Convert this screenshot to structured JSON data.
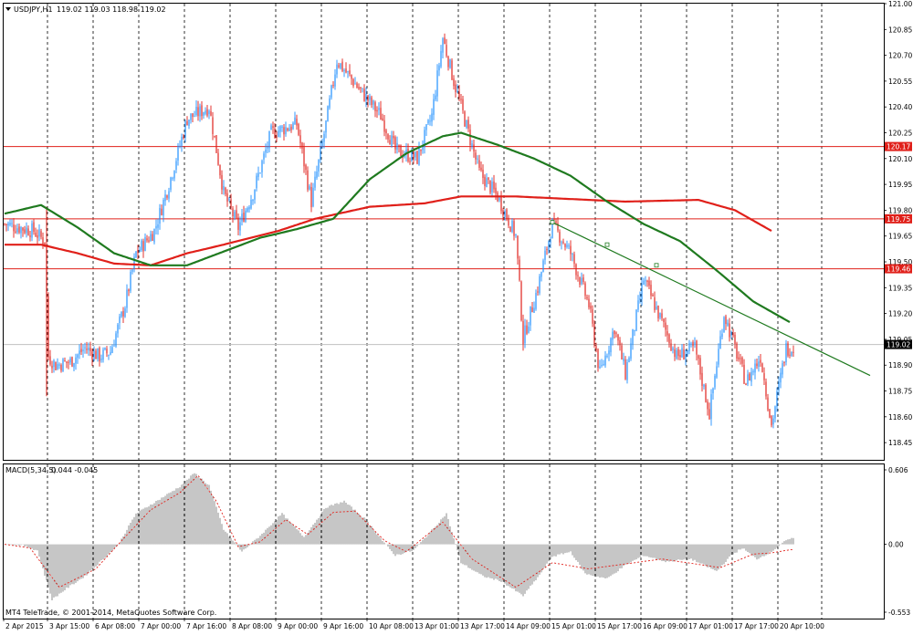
{
  "header": {
    "symbol_label": "USDJPY,H1",
    "ohlc_text": "119.02 119.03 118.98 119.02"
  },
  "indicator": {
    "label": "MACD(5,34,5)",
    "values_text": "0.044 -0.045",
    "ticks": [
      "0.606",
      "0.00",
      "-0.553"
    ]
  },
  "footer": {
    "copyright": "MT4 TeleTrade, © 2001-2014, MetaQuotes Software Corp."
  },
  "colors": {
    "up_candle": "#1e90ff",
    "down_candle": "#e0201a",
    "ma_slow": "#e0201a",
    "ma_fast": "#1f7a1f",
    "trendline": "#1f7a1f",
    "level_line": "#e0201a",
    "histogram": "#808080",
    "signal": "#e0201a",
    "bid_line": "#c0c0c0"
  },
  "chart_data": {
    "type": "candlestick",
    "ylim": [
      118.35,
      121.0
    ],
    "y_ticks": [
      "121.00",
      "120.85",
      "120.70",
      "120.55",
      "120.40",
      "120.25",
      "120.10",
      "119.95",
      "119.80",
      "119.65",
      "119.50",
      "119.35",
      "119.20",
      "119.05",
      "118.90",
      "118.75",
      "118.60",
      "118.45"
    ],
    "x_ticks": [
      "2 Apr 2015",
      "3 Apr 15:00",
      "6 Apr 08:00",
      "7 Apr 00:00",
      "7 Apr 16:00",
      "8 Apr 08:00",
      "9 Apr 00:00",
      "9 Apr 16:00",
      "10 Apr 08:00",
      "13 Apr 01:00",
      "13 Apr 17:00",
      "14 Apr 09:00",
      "15 Apr 01:00",
      "15 Apr 17:00",
      "16 Apr 09:00",
      "17 Apr 01:00",
      "17 Apr 17:00",
      "20 Apr 10:00"
    ],
    "price_levels": [
      {
        "label": "120.17",
        "value": 120.17
      },
      {
        "label": "119.75",
        "value": 119.75
      },
      {
        "label": "119.46",
        "value": 119.46
      }
    ],
    "current_price": {
      "label": "119.02",
      "value": 119.02
    },
    "trendline": {
      "start": [
        300,
        119.73
      ],
      "end": [
        474,
        118.84
      ],
      "anchors": [
        [
          300,
          119.73
        ],
        [
          330,
          119.6
        ],
        [
          357,
          119.48
        ]
      ]
    },
    "close_anchors": [
      [
        0,
        119.72
      ],
      [
        8,
        119.7
      ],
      [
        16,
        119.68
      ],
      [
        22,
        119.62
      ],
      [
        24,
        118.95
      ],
      [
        28,
        118.9
      ],
      [
        36,
        118.92
      ],
      [
        44,
        119.0
      ],
      [
        52,
        118.95
      ],
      [
        58,
        118.98
      ],
      [
        66,
        119.25
      ],
      [
        72,
        119.55
      ],
      [
        82,
        119.68
      ],
      [
        90,
        119.95
      ],
      [
        100,
        120.33
      ],
      [
        112,
        120.4
      ],
      [
        120,
        119.9
      ],
      [
        128,
        119.7
      ],
      [
        136,
        119.9
      ],
      [
        146,
        120.25
      ],
      [
        160,
        120.3
      ],
      [
        168,
        119.85
      ],
      [
        176,
        120.3
      ],
      [
        182,
        120.67
      ],
      [
        196,
        120.48
      ],
      [
        206,
        120.35
      ],
      [
        214,
        120.15
      ],
      [
        226,
        120.1
      ],
      [
        234,
        120.35
      ],
      [
        240,
        120.8
      ],
      [
        246,
        120.55
      ],
      [
        254,
        120.25
      ],
      [
        260,
        120.02
      ],
      [
        270,
        119.88
      ],
      [
        280,
        119.65
      ],
      [
        284,
        119.05
      ],
      [
        292,
        119.35
      ],
      [
        300,
        119.72
      ],
      [
        310,
        119.55
      ],
      [
        320,
        119.25
      ],
      [
        326,
        118.85
      ],
      [
        334,
        119.12
      ],
      [
        340,
        118.85
      ],
      [
        350,
        119.4
      ],
      [
        360,
        119.15
      ],
      [
        368,
        118.95
      ],
      [
        378,
        119.0
      ],
      [
        386,
        118.62
      ],
      [
        394,
        119.2
      ],
      [
        406,
        118.8
      ],
      [
        414,
        118.95
      ],
      [
        420,
        118.55
      ],
      [
        428,
        119.0
      ]
    ],
    "ma_fast_anchors": [
      [
        0,
        119.78
      ],
      [
        20,
        119.83
      ],
      [
        40,
        119.7
      ],
      [
        60,
        119.55
      ],
      [
        80,
        119.48
      ],
      [
        100,
        119.48
      ],
      [
        120,
        119.56
      ],
      [
        140,
        119.64
      ],
      [
        160,
        119.69
      ],
      [
        180,
        119.75
      ],
      [
        200,
        119.98
      ],
      [
        220,
        120.13
      ],
      [
        240,
        120.23
      ],
      [
        250,
        120.25
      ],
      [
        270,
        120.18
      ],
      [
        290,
        120.1
      ],
      [
        310,
        120.0
      ],
      [
        330,
        119.85
      ],
      [
        350,
        119.72
      ],
      [
        370,
        119.62
      ],
      [
        390,
        119.45
      ],
      [
        410,
        119.27
      ],
      [
        430,
        119.15
      ]
    ],
    "ma_slow_anchors": [
      [
        0,
        119.6
      ],
      [
        20,
        119.6
      ],
      [
        40,
        119.55
      ],
      [
        60,
        119.49
      ],
      [
        80,
        119.48
      ],
      [
        100,
        119.55
      ],
      [
        120,
        119.6
      ],
      [
        150,
        119.68
      ],
      [
        170,
        119.75
      ],
      [
        200,
        119.82
      ],
      [
        230,
        119.84
      ],
      [
        250,
        119.88
      ],
      [
        280,
        119.88
      ],
      [
        300,
        119.87
      ],
      [
        320,
        119.86
      ],
      [
        340,
        119.85
      ],
      [
        380,
        119.86
      ],
      [
        400,
        119.8
      ],
      [
        420,
        119.68
      ]
    ],
    "macd": {
      "ylim": [
        -0.553,
        0.606
      ],
      "hist_anchors": [
        [
          0,
          0.005
        ],
        [
          10,
          -0.01
        ],
        [
          18,
          -0.05
        ],
        [
          26,
          -0.45
        ],
        [
          34,
          -0.36
        ],
        [
          44,
          -0.26
        ],
        [
          54,
          -0.12
        ],
        [
          62,
          -0.01
        ],
        [
          72,
          0.25
        ],
        [
          82,
          0.34
        ],
        [
          96,
          0.47
        ],
        [
          104,
          0.58
        ],
        [
          112,
          0.48
        ],
        [
          120,
          0.12
        ],
        [
          130,
          -0.06
        ],
        [
          140,
          0.07
        ],
        [
          152,
          0.25
        ],
        [
          164,
          0.06
        ],
        [
          176,
          0.3
        ],
        [
          186,
          0.35
        ],
        [
          198,
          0.2
        ],
        [
          208,
          0.01
        ],
        [
          214,
          -0.09
        ],
        [
          224,
          -0.05
        ],
        [
          232,
          0.08
        ],
        [
          242,
          0.25
        ],
        [
          250,
          -0.15
        ],
        [
          262,
          -0.26
        ],
        [
          272,
          -0.3
        ],
        [
          284,
          -0.42
        ],
        [
          292,
          -0.27
        ],
        [
          300,
          -0.1
        ],
        [
          310,
          -0.06
        ],
        [
          318,
          -0.24
        ],
        [
          330,
          -0.28
        ],
        [
          340,
          -0.17
        ],
        [
          350,
          -0.09
        ],
        [
          362,
          -0.14
        ],
        [
          376,
          -0.12
        ],
        [
          390,
          -0.22
        ],
        [
          398,
          -0.09
        ],
        [
          404,
          -0.03
        ],
        [
          412,
          -0.12
        ],
        [
          420,
          -0.06
        ],
        [
          426,
          0.01
        ],
        [
          430,
          0.044
        ]
      ],
      "signal_anchors": [
        [
          0,
          0.0
        ],
        [
          14,
          -0.03
        ],
        [
          30,
          -0.35
        ],
        [
          50,
          -0.2
        ],
        [
          66,
          0.06
        ],
        [
          80,
          0.28
        ],
        [
          96,
          0.42
        ],
        [
          106,
          0.56
        ],
        [
          116,
          0.35
        ],
        [
          128,
          -0.02
        ],
        [
          140,
          0.02
        ],
        [
          154,
          0.2
        ],
        [
          166,
          0.08
        ],
        [
          180,
          0.26
        ],
        [
          192,
          0.27
        ],
        [
          208,
          0.03
        ],
        [
          220,
          -0.06
        ],
        [
          240,
          0.18
        ],
        [
          256,
          -0.12
        ],
        [
          280,
          -0.35
        ],
        [
          300,
          -0.15
        ],
        [
          320,
          -0.2
        ],
        [
          340,
          -0.16
        ],
        [
          360,
          -0.12
        ],
        [
          392,
          -0.19
        ],
        [
          410,
          -0.08
        ],
        [
          420,
          -0.07
        ],
        [
          430,
          -0.045
        ]
      ]
    }
  }
}
